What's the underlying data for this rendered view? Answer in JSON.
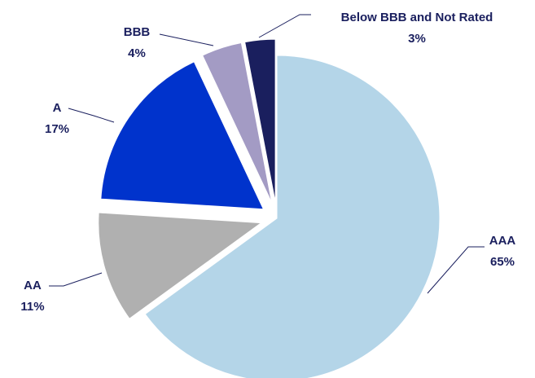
{
  "chart_data": {
    "type": "pie",
    "categories": [
      "AAA",
      "AA",
      "A",
      "BBB",
      "Below BBB and Not Rated"
    ],
    "values": [
      65,
      11,
      17,
      4,
      3
    ],
    "value_labels": [
      "65%",
      "11%",
      "17%",
      "4%",
      "3%"
    ],
    "colors": [
      "#b4d5e8",
      "#b0b0b0",
      "#0033cc",
      "#a39bc4",
      "#1a1f5e"
    ]
  }
}
